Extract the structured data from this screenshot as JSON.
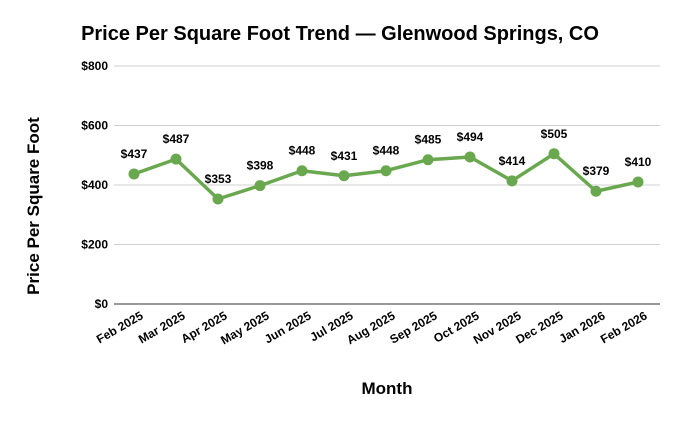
{
  "chart_data": {
    "type": "line",
    "title": "Price Per Square Foot Trend — Glenwood Springs, CO",
    "xlabel": "Month",
    "ylabel": "Price Per Square Foot",
    "categories": [
      "Feb 2025",
      "Mar 2025",
      "Apr 2025",
      "May 2025",
      "Jun 2025",
      "Jul 2025",
      "Aug 2025",
      "Sep 2025",
      "Oct 2025",
      "Nov 2025",
      "Dec 2025",
      "Jan 2026",
      "Feb 2026"
    ],
    "series": [
      {
        "values": [
          437,
          487,
          353,
          398,
          448,
          431,
          448,
          485,
          494,
          414,
          505,
          379,
          410
        ],
        "labels": [
          "$437",
          "$487",
          "$353",
          "$398",
          "$448",
          "$431",
          "$448",
          "$485",
          "$494",
          "$414",
          "$505",
          "$379",
          "$410"
        ],
        "color": "#6aa84f"
      }
    ],
    "yticks": [
      0,
      200,
      400,
      600,
      800
    ],
    "ytick_labels": [
      "$0",
      "$200",
      "$400",
      "$600",
      "$800"
    ],
    "ylim": [
      0,
      800
    ],
    "grid": true,
    "legend": "none"
  }
}
